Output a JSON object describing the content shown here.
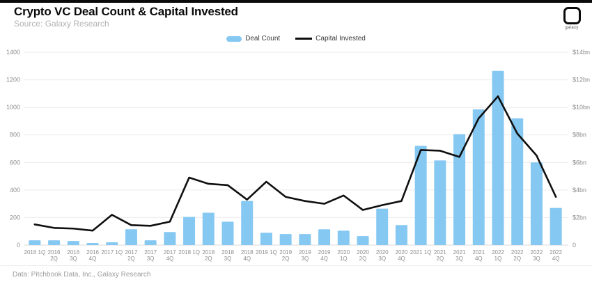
{
  "header": {
    "title": "Crypto VC Deal Count & Capital Invested",
    "source": "Source: Galaxy Research",
    "logo_word": "galaxy"
  },
  "legend": [
    {
      "label": "Deal Count",
      "type": "bar",
      "color": "#85C8F2"
    },
    {
      "label": "Capital Invested",
      "type": "line",
      "color": "#0f0f0f"
    }
  ],
  "footer": {
    "text": "Data: Pitchbook Data, Inc., Galaxy Research"
  },
  "chart_data": {
    "type": "bar+line combo",
    "title": "Crypto VC Deal Count & Capital Invested",
    "grid": true,
    "legend_position": "top-center",
    "categories": [
      "2016 1Q",
      "2016 2Q",
      "2016 3Q",
      "2016 4Q",
      "2017 1Q",
      "2017 2Q",
      "2017 3Q",
      "2017 4Q",
      "2018 1Q",
      "2018 2Q",
      "2018 3Q",
      "2018 4Q",
      "2019 1Q",
      "2019 2Q",
      "2019 3Q",
      "2019 4Q",
      "2020 1Q",
      "2020 2Q",
      "2020 3Q",
      "2020 4Q",
      "2021 1Q",
      "2021 2Q",
      "2021 3Q",
      "2021 4Q",
      "2022 1Q",
      "2022 2Q",
      "2022 3Q",
      "2022 4Q"
    ],
    "x_ticks": [
      {
        "l1": "2016 1Q",
        "l2": ""
      },
      {
        "l1": "2016",
        "l2": "2Q"
      },
      {
        "l1": "2016",
        "l2": "3Q"
      },
      {
        "l1": "2016",
        "l2": "4Q"
      },
      {
        "l1": "2017 1Q",
        "l2": ""
      },
      {
        "l1": "2017",
        "l2": "2Q"
      },
      {
        "l1": "2017",
        "l2": "3Q"
      },
      {
        "l1": "2017",
        "l2": "4Q"
      },
      {
        "l1": "2018 1Q",
        "l2": ""
      },
      {
        "l1": "2018",
        "l2": "2Q"
      },
      {
        "l1": "2018",
        "l2": "3Q"
      },
      {
        "l1": "2018",
        "l2": "4Q"
      },
      {
        "l1": "2019 1Q",
        "l2": ""
      },
      {
        "l1": "2019",
        "l2": "2Q"
      },
      {
        "l1": "2019",
        "l2": "3Q"
      },
      {
        "l1": "2019",
        "l2": "4Q"
      },
      {
        "l1": "2020",
        "l2": "1Q"
      },
      {
        "l1": "2020",
        "l2": "2Q"
      },
      {
        "l1": "2020",
        "l2": "3Q"
      },
      {
        "l1": "2020",
        "l2": "4Q"
      },
      {
        "l1": "2021 1Q",
        "l2": ""
      },
      {
        "l1": "2021",
        "l2": "2Q"
      },
      {
        "l1": "2021",
        "l2": "3Q"
      },
      {
        "l1": "2021",
        "l2": "4Q"
      },
      {
        "l1": "2022",
        "l2": "1Q"
      },
      {
        "l1": "2022",
        "l2": "2Q"
      },
      {
        "l1": "2022",
        "l2": "3Q"
      },
      {
        "l1": "2022",
        "l2": "4Q"
      }
    ],
    "series": [
      {
        "name": "Deal Count",
        "type": "bar",
        "axis": "left",
        "color": "#85C8F2",
        "values": [
          35,
          35,
          30,
          15,
          20,
          115,
          35,
          95,
          205,
          235,
          170,
          320,
          90,
          80,
          80,
          115,
          105,
          65,
          265,
          145,
          720,
          615,
          805,
          985,
          1265,
          920,
          600,
          270
        ]
      },
      {
        "name": "Capital Invested",
        "type": "line",
        "axis": "right",
        "color": "#0f0f0f",
        "values_bn": [
          1.5,
          1.25,
          1.2,
          1.05,
          2.2,
          1.45,
          1.4,
          1.7,
          4.9,
          4.45,
          4.35,
          3.3,
          4.6,
          3.5,
          3.2,
          3.0,
          3.6,
          2.55,
          2.9,
          3.2,
          6.9,
          6.85,
          6.4,
          9.2,
          10.8,
          8.1,
          6.5,
          3.5
        ]
      }
    ],
    "left_axis": {
      "label": "",
      "ticks": [
        0,
        200,
        400,
        600,
        800,
        1000,
        1200,
        1400
      ],
      "min": 0,
      "max": 1400
    },
    "right_axis": {
      "label": "",
      "tick_labels": [
        "0",
        "$2bn",
        "$4bn",
        "$6bn",
        "$8bn",
        "$10bn",
        "$12bn",
        "$14bn"
      ],
      "min_bn": 0,
      "max_bn": 14
    },
    "colors": {
      "grid": "#ebebeb",
      "baseline": "#d9d9d9",
      "axis_text": "#8c8c8c"
    }
  }
}
